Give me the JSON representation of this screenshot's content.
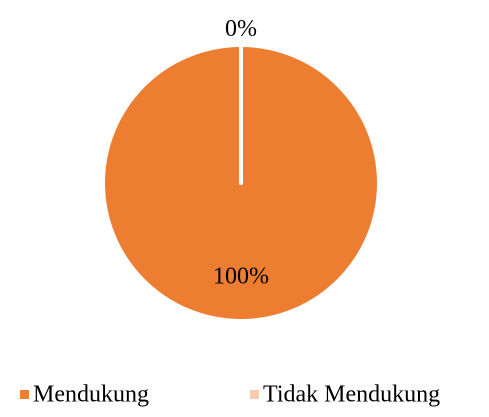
{
  "chart_data": {
    "type": "pie",
    "series": [
      {
        "name": "Mendukung",
        "color": "#ed7d31"
      },
      {
        "name": "Tidak Mendukung",
        "color": "#f8cbad"
      }
    ],
    "values": [
      100,
      0
    ],
    "value_labels": [
      "100%",
      "0%"
    ],
    "legend": "bottom"
  }
}
